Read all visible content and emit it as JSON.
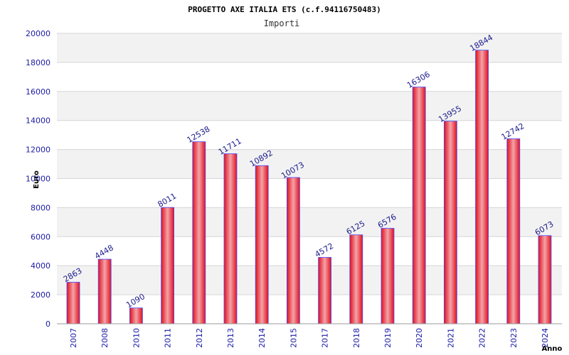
{
  "chart_data": {
    "type": "bar",
    "title": "PROGETTO AXE ITALIA ETS (c.f.94116750483)",
    "subtitle": "Importi",
    "xlabel": "Anno",
    "ylabel": "Euro",
    "ylim": [
      0,
      20000
    ],
    "yticks": [
      "0",
      "2000",
      "4000",
      "6000",
      "8000",
      "10000",
      "12000",
      "14000",
      "16000",
      "18000",
      "20000"
    ],
    "grid": true,
    "categories": [
      "2007",
      "2008",
      "2010",
      "2011",
      "2012",
      "2013",
      "2014",
      "2015",
      "2017",
      "2018",
      "2019",
      "2020",
      "2021",
      "2022",
      "2023",
      "2024"
    ],
    "values": [
      2863,
      4448,
      1090,
      8011,
      12538,
      11711,
      10892,
      10073,
      4572,
      6125,
      6576,
      16306,
      13955,
      18844,
      12742,
      6073
    ],
    "data_labels": [
      "2863",
      "4448",
      "1090",
      "8011",
      "12538",
      "11711",
      "10892",
      "10073",
      "4572",
      "6125",
      "6576",
      "16306",
      "13955",
      "18844",
      "12742",
      "6073"
    ],
    "colors": {
      "bar": "#e0101e",
      "bar_highlight": "#f4a3a8",
      "bar_edge": "#4a4aff",
      "band": "#f2f2f2",
      "label": "#1a1a8c",
      "tick": "#1a1aa6"
    }
  }
}
